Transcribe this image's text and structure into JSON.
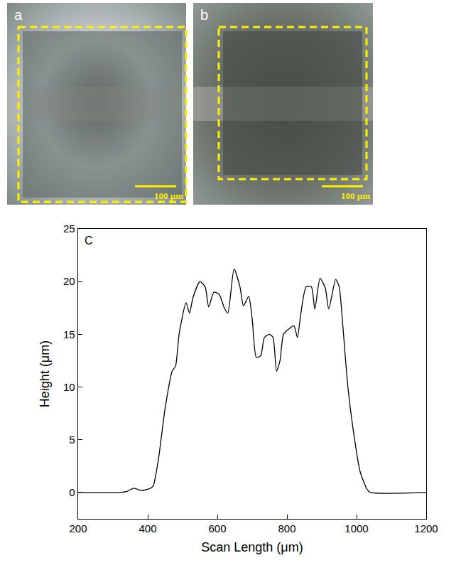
{
  "panels": [
    {
      "label": "a",
      "scale_bar": "100 μm"
    },
    {
      "label": "b",
      "scale_bar": "100 μm"
    }
  ],
  "chart_data": {
    "type": "line",
    "panel_label": "C",
    "x_label": "Scan Length (μm)",
    "y_label": "Height (μm)",
    "x": [
      200,
      320,
      340,
      360,
      380,
      400,
      415,
      430,
      450,
      470,
      480,
      490,
      510,
      520,
      530,
      550,
      565,
      575,
      590,
      605,
      620,
      630,
      648,
      665,
      675,
      690,
      700,
      712,
      725,
      735,
      750,
      760,
      770,
      780,
      790,
      805,
      820,
      830,
      840,
      855,
      870,
      880,
      895,
      910,
      920,
      940,
      950,
      960,
      975,
      990,
      1010,
      1030,
      1040,
      1200
    ],
    "values": [
      0,
      0,
      0.1,
      0.4,
      0.2,
      0.3,
      0.6,
      3,
      8,
      11.5,
      12,
      15,
      18,
      17,
      18.5,
      20,
      19.5,
      17.6,
      19,
      18.8,
      17.5,
      17,
      21.2,
      19.5,
      17.7,
      18.6,
      16.5,
      12.8,
      13,
      14.7,
      15,
      14.7,
      11.5,
      12.5,
      15,
      15.5,
      15.8,
      14.7,
      17,
      19.5,
      19.5,
      17.4,
      20.3,
      19.4,
      17.4,
      20.2,
      19.5,
      16,
      10,
      6,
      2,
      0.3,
      0,
      0
    ],
    "color": "#000000",
    "xlim": [
      200,
      1200
    ],
    "xticks": [
      200,
      400,
      600,
      800,
      1000,
      1200
    ],
    "ylim": [
      -2.5,
      25
    ],
    "yticks": [
      0,
      5,
      10,
      15,
      20,
      25
    ],
    "grid": false
  }
}
